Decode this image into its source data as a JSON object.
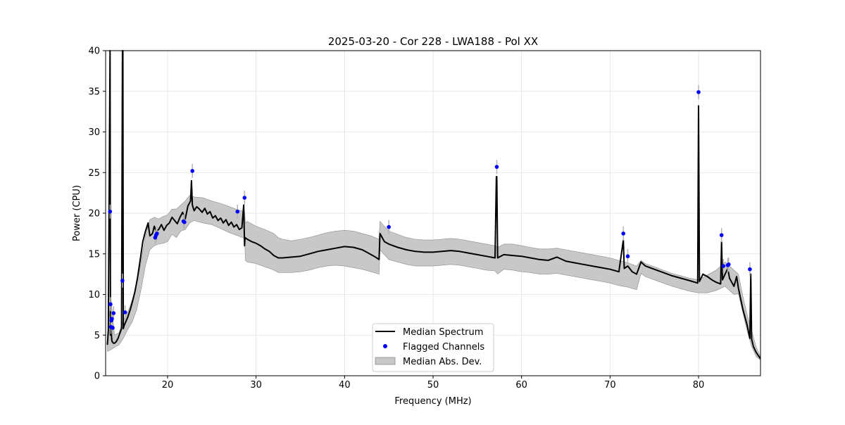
{
  "chart_data": {
    "type": "line",
    "title": "2025-03-20 - Cor 228 - LWA188 - Pol XX",
    "xlabel": "Frequency (MHz)",
    "ylabel": "Power (CPU)",
    "xlim": [
      13.0,
      87.0
    ],
    "ylim": [
      0,
      40
    ],
    "xticks": [
      20,
      30,
      40,
      50,
      60,
      70,
      80
    ],
    "yticks": [
      0,
      5,
      10,
      15,
      20,
      25,
      30,
      35,
      40
    ],
    "grid": true,
    "legend": {
      "position": "lower center",
      "entries": [
        "Median Spectrum",
        "Flagged Channels",
        "Median Abs. Dev."
      ]
    },
    "colors": {
      "median": "#000000",
      "flagged": "#0000ff",
      "mad_fill": "#c8c8c8",
      "mad_edge": "#8c8c8c",
      "grid": "#e0e0e0"
    },
    "series": [
      {
        "name": "Median Spectrum",
        "x": [
          13.2,
          13.3,
          13.5,
          13.55,
          13.6,
          13.7,
          13.8,
          13.9,
          14.0,
          14.2,
          14.4,
          14.6,
          14.8,
          14.9,
          14.95,
          15.0,
          15.1,
          15.3,
          15.5,
          15.8,
          16.0,
          16.3,
          16.6,
          16.9,
          17.2,
          17.5,
          17.8,
          18.0,
          18.3,
          18.5,
          18.7,
          19.0,
          19.3,
          19.6,
          19.9,
          20.2,
          20.5,
          20.8,
          21.1,
          21.4,
          21.7,
          22.0,
          22.3,
          22.6,
          22.7,
          22.8,
          23.0,
          23.3,
          23.6,
          23.9,
          24.2,
          24.5,
          24.8,
          25.1,
          25.4,
          25.7,
          26.0,
          26.3,
          26.6,
          26.9,
          27.2,
          27.5,
          27.8,
          28.1,
          28.4,
          28.6,
          28.7,
          28.75,
          29.0,
          29.5,
          30.0,
          30.5,
          31.0,
          31.5,
          32.0,
          32.5,
          33.0,
          34.0,
          35.0,
          36.0,
          37.0,
          38.0,
          39.0,
          40.0,
          41.0,
          42.0,
          42.5,
          43.0,
          43.5,
          43.9,
          44.0,
          44.5,
          45.0,
          46.0,
          47.0,
          48.0,
          49.0,
          50.0,
          51.0,
          52.0,
          53.0,
          54.0,
          55.0,
          56.0,
          57.0,
          57.15,
          57.2,
          57.3,
          58.0,
          59.0,
          60.0,
          61.0,
          62.0,
          63.0,
          64.0,
          65.0,
          66.0,
          67.0,
          68.0,
          69.0,
          70.0,
          71.0,
          71.5,
          71.6,
          72.0,
          72.5,
          73.0,
          73.5,
          74.0,
          75.0,
          76.0,
          77.0,
          78.0,
          79.0,
          79.9,
          80.0,
          80.1,
          80.5,
          81.0,
          81.5,
          82.0,
          82.5,
          82.6,
          82.7,
          83.0,
          83.3,
          83.5,
          83.8,
          84.0,
          84.3,
          84.5,
          85.0,
          85.5,
          85.8,
          85.9,
          86.0,
          86.2,
          86.5,
          86.8,
          87.0
        ],
        "y": [
          3.8,
          5.5,
          40.0,
          5.0,
          6.0,
          4.3,
          4.1,
          4.0,
          4.0,
          4.2,
          4.6,
          5.2,
          5.8,
          40.0,
          40.0,
          5.8,
          6.2,
          6.7,
          7.2,
          8.2,
          9.0,
          10.3,
          12.0,
          14.2,
          16.5,
          17.8,
          18.8,
          17.2,
          17.5,
          18.4,
          17.8,
          18.0,
          18.6,
          17.9,
          18.5,
          18.8,
          19.5,
          19.1,
          18.7,
          19.5,
          20.1,
          19.3,
          20.9,
          21.5,
          24.0,
          21.0,
          20.3,
          20.8,
          20.5,
          20.1,
          20.6,
          19.9,
          20.2,
          19.4,
          19.7,
          19.1,
          19.4,
          18.8,
          19.2,
          18.5,
          18.9,
          18.3,
          18.6,
          18.0,
          18.2,
          21.0,
          16.0,
          17.0,
          16.8,
          16.5,
          16.3,
          16.0,
          15.6,
          15.3,
          14.8,
          14.5,
          14.5,
          14.6,
          14.7,
          15.0,
          15.3,
          15.5,
          15.7,
          15.9,
          15.8,
          15.5,
          15.2,
          14.9,
          14.6,
          14.3,
          17.5,
          16.5,
          16.2,
          15.8,
          15.5,
          15.3,
          15.2,
          15.2,
          15.3,
          15.4,
          15.3,
          15.1,
          14.9,
          14.7,
          14.5,
          24.5,
          24.5,
          14.5,
          14.9,
          14.8,
          14.7,
          14.5,
          14.3,
          14.2,
          14.6,
          14.1,
          13.9,
          13.7,
          13.5,
          13.3,
          13.1,
          12.8,
          16.7,
          13.2,
          13.5,
          12.8,
          12.5,
          14.0,
          13.5,
          13.1,
          12.7,
          12.3,
          12.0,
          11.7,
          11.4,
          33.2,
          11.6,
          12.5,
          12.2,
          11.8,
          11.5,
          11.3,
          16.5,
          11.8,
          12.5,
          13.2,
          12.0,
          11.4,
          11.0,
          12.2,
          10.8,
          8.2,
          6.2,
          4.6,
          12.5,
          4.5,
          3.6,
          2.9,
          2.4,
          2.1
        ]
      },
      {
        "name": "Flagged Channels",
        "points": [
          [
            13.5,
            20.2
          ],
          [
            13.55,
            8.8
          ],
          [
            13.6,
            6.0
          ],
          [
            13.65,
            6.8
          ],
          [
            13.7,
            7.0
          ],
          [
            13.8,
            5.9
          ],
          [
            13.9,
            7.7
          ],
          [
            14.9,
            11.7
          ],
          [
            15.2,
            7.8
          ],
          [
            18.6,
            17.0
          ],
          [
            18.7,
            17.3
          ],
          [
            18.8,
            17.5
          ],
          [
            21.8,
            19.0
          ],
          [
            21.9,
            18.9
          ],
          [
            22.8,
            25.2
          ],
          [
            27.9,
            20.2
          ],
          [
            28.7,
            21.9
          ],
          [
            45.0,
            18.3
          ],
          [
            57.2,
            25.7
          ],
          [
            71.5,
            17.5
          ],
          [
            72.0,
            14.7
          ],
          [
            80.0,
            34.9
          ],
          [
            82.6,
            17.3
          ],
          [
            82.8,
            13.5
          ],
          [
            83.3,
            13.6
          ],
          [
            83.4,
            13.7
          ],
          [
            85.8,
            13.1
          ]
        ]
      },
      {
        "name": "Median Abs. Dev.",
        "x": [
          13.2,
          13.6,
          14.0,
          14.5,
          15.0,
          15.5,
          16.0,
          16.5,
          17.0,
          17.5,
          18.0,
          18.5,
          19.0,
          19.5,
          20.0,
          20.5,
          21.0,
          21.5,
          22.0,
          22.5,
          23.0,
          24.0,
          25.0,
          26.0,
          27.0,
          28.0,
          28.7,
          28.8,
          29.0,
          30.0,
          31.0,
          32.0,
          32.5,
          33.0,
          34.0,
          35.0,
          36.0,
          37.0,
          38.0,
          39.0,
          40.0,
          41.0,
          42.0,
          43.0,
          43.9,
          44.0,
          45.0,
          46.0,
          47.0,
          48.0,
          49.0,
          50.0,
          51.0,
          52.0,
          53.0,
          54.0,
          55.0,
          56.0,
          57.0,
          57.3,
          58.0,
          59.0,
          60.0,
          61.0,
          62.0,
          63.0,
          64.0,
          65.0,
          66.0,
          67.0,
          68.0,
          69.0,
          70.0,
          71.0,
          72.0,
          73.0,
          73.5,
          74.0,
          75.0,
          76.0,
          77.0,
          78.0,
          79.0,
          80.0,
          81.0,
          82.0,
          83.0,
          84.0,
          84.5,
          85.0,
          85.5,
          86.0,
          86.5,
          87.0
        ],
        "upper": [
          5.0,
          9.5,
          5.0,
          5.3,
          6.8,
          7.8,
          9.3,
          11.3,
          14.0,
          17.2,
          19.2,
          19.5,
          19.3,
          19.6,
          19.8,
          20.5,
          20.5,
          21.0,
          21.5,
          22.2,
          22.0,
          21.9,
          21.5,
          21.2,
          20.8,
          20.4,
          20.2,
          18.8,
          19.0,
          18.4,
          18.0,
          17.5,
          17.0,
          16.8,
          16.6,
          16.8,
          17.0,
          17.3,
          17.6,
          17.8,
          17.9,
          17.8,
          17.5,
          17.2,
          16.8,
          19.0,
          17.8,
          17.4,
          17.0,
          16.8,
          16.7,
          16.7,
          16.8,
          16.9,
          16.8,
          16.6,
          16.4,
          16.2,
          16.0,
          15.8,
          16.2,
          16.2,
          16.0,
          15.8,
          15.6,
          15.6,
          15.7,
          15.5,
          15.3,
          15.1,
          14.9,
          14.7,
          14.5,
          14.2,
          13.9,
          13.5,
          14.2,
          13.8,
          13.4,
          13.0,
          12.6,
          12.3,
          12.0,
          11.8,
          12.4,
          13.0,
          14.0,
          13.0,
          12.5,
          9.8,
          7.5,
          5.5,
          3.6,
          2.3
        ],
        "lower": [
          3.0,
          3.2,
          3.5,
          3.8,
          4.6,
          5.7,
          6.6,
          8.1,
          10.6,
          13.6,
          15.5,
          16.0,
          16.2,
          16.3,
          16.5,
          17.4,
          17.0,
          17.8,
          18.0,
          18.8,
          19.1,
          18.8,
          18.6,
          18.1,
          17.6,
          17.2,
          16.9,
          14.2,
          14.0,
          13.8,
          13.4,
          13.0,
          12.7,
          12.7,
          12.7,
          12.8,
          13.0,
          13.3,
          13.5,
          13.6,
          13.5,
          13.3,
          13.1,
          12.8,
          12.5,
          15.5,
          14.3,
          14.0,
          13.7,
          13.5,
          13.5,
          13.5,
          13.6,
          13.7,
          13.6,
          13.4,
          13.2,
          13.0,
          12.9,
          12.5,
          13.1,
          13.0,
          12.8,
          12.7,
          12.5,
          12.5,
          12.6,
          12.4,
          12.2,
          12.0,
          11.8,
          11.6,
          11.4,
          11.1,
          10.9,
          10.6,
          12.6,
          12.2,
          11.8,
          11.4,
          11.0,
          10.7,
          10.4,
          10.2,
          10.2,
          10.5,
          11.0,
          10.0,
          10.1,
          7.8,
          5.5,
          3.6,
          2.4,
          1.9
        ]
      }
    ]
  }
}
